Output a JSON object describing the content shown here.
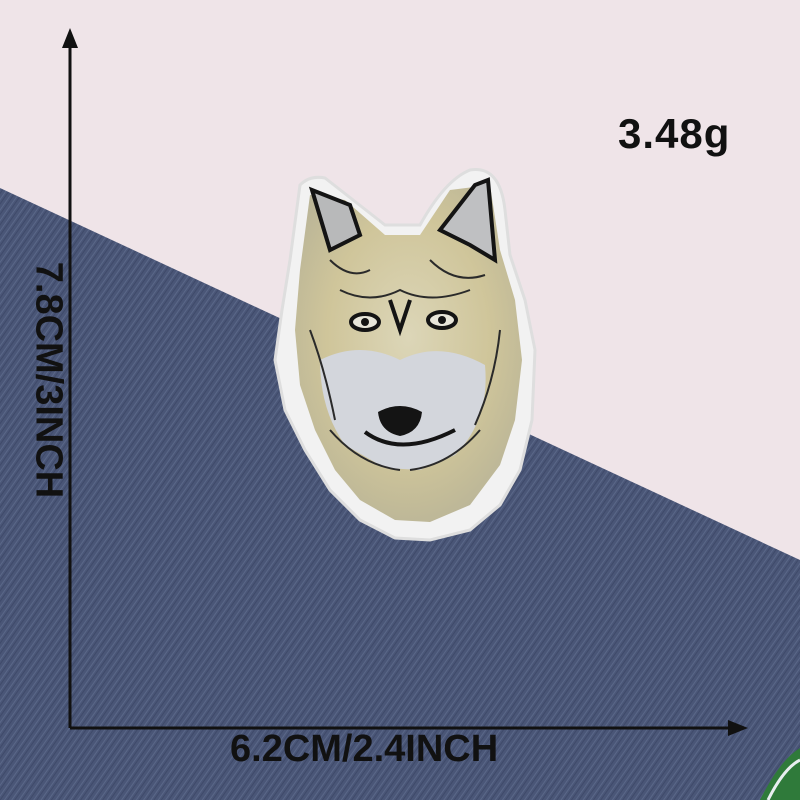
{
  "product": {
    "subject": "Wolf head embroidered patch",
    "weight_label": "3.48g",
    "width_label": "6.2CM/2.4INCH",
    "height_label": "7.8CM/3INCH"
  },
  "colors": {
    "background_pink": "#efe4e8",
    "denim": "#4a5677",
    "patch_base": "#f2f2f2",
    "fur_tan": "#d6cc9c",
    "fur_gray": "#c9ccd2",
    "outline_black": "#141414",
    "green_accent": "#2f7a3a"
  }
}
